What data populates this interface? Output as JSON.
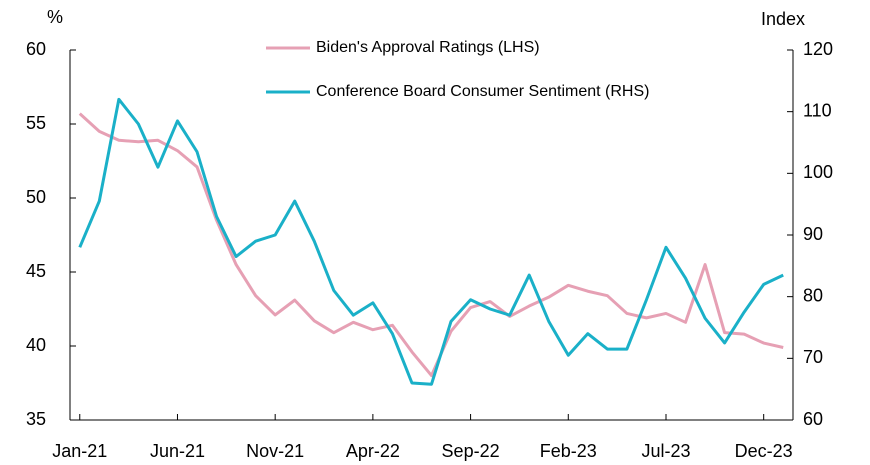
{
  "chart_data": {
    "type": "line",
    "y_label": "%",
    "y2_label": "Index",
    "categories": [
      "Jan-21",
      null,
      null,
      null,
      null,
      "Jun-21",
      null,
      null,
      null,
      null,
      "Nov-21",
      null,
      null,
      null,
      null,
      "Apr-22",
      null,
      null,
      null,
      null,
      "Sep-22",
      null,
      null,
      null,
      null,
      "Feb-23",
      null,
      null,
      null,
      null,
      "Jul-23",
      null,
      null,
      null,
      null,
      "Dec-23",
      null
    ],
    "series": [
      {
        "name": "Biden's Approval Ratings (LHS)",
        "color": "#e6a0b4",
        "axis": "y",
        "values": [
          55.7,
          54.5,
          53.9,
          53.8,
          53.9,
          53.2,
          52.1,
          48.5,
          45.5,
          43.4,
          42.1,
          43.1,
          41.7,
          40.9,
          41.6,
          41.1,
          41.4,
          39.6,
          38.0,
          41.0,
          42.6,
          43.0,
          42.0,
          42.7,
          43.3,
          44.1,
          43.7,
          43.4,
          42.2,
          41.9,
          42.2,
          41.6,
          45.5,
          40.9,
          40.8,
          40.2,
          39.9
        ]
      },
      {
        "name": "Conference Board Consumer Sentiment (RHS)",
        "color": "#1ab0c8",
        "axis": "y2",
        "values": [
          88,
          95.5,
          112,
          108,
          101,
          108.5,
          103.5,
          93,
          86.5,
          89,
          90,
          95.5,
          89,
          81,
          77,
          79,
          74,
          66,
          65.8,
          76,
          79.5,
          78,
          77,
          83.5,
          76,
          70.5,
          74,
          71.5,
          71.5,
          79.5,
          88,
          83,
          76.5,
          72.5,
          77.5,
          82,
          83.5
        ]
      }
    ],
    "ylim": [
      35,
      60
    ],
    "yticks": [
      35,
      40,
      45,
      50,
      55,
      60
    ],
    "y2lim": [
      60,
      120
    ],
    "y2ticks": [
      60,
      70,
      80,
      90,
      100,
      110,
      120
    ]
  }
}
